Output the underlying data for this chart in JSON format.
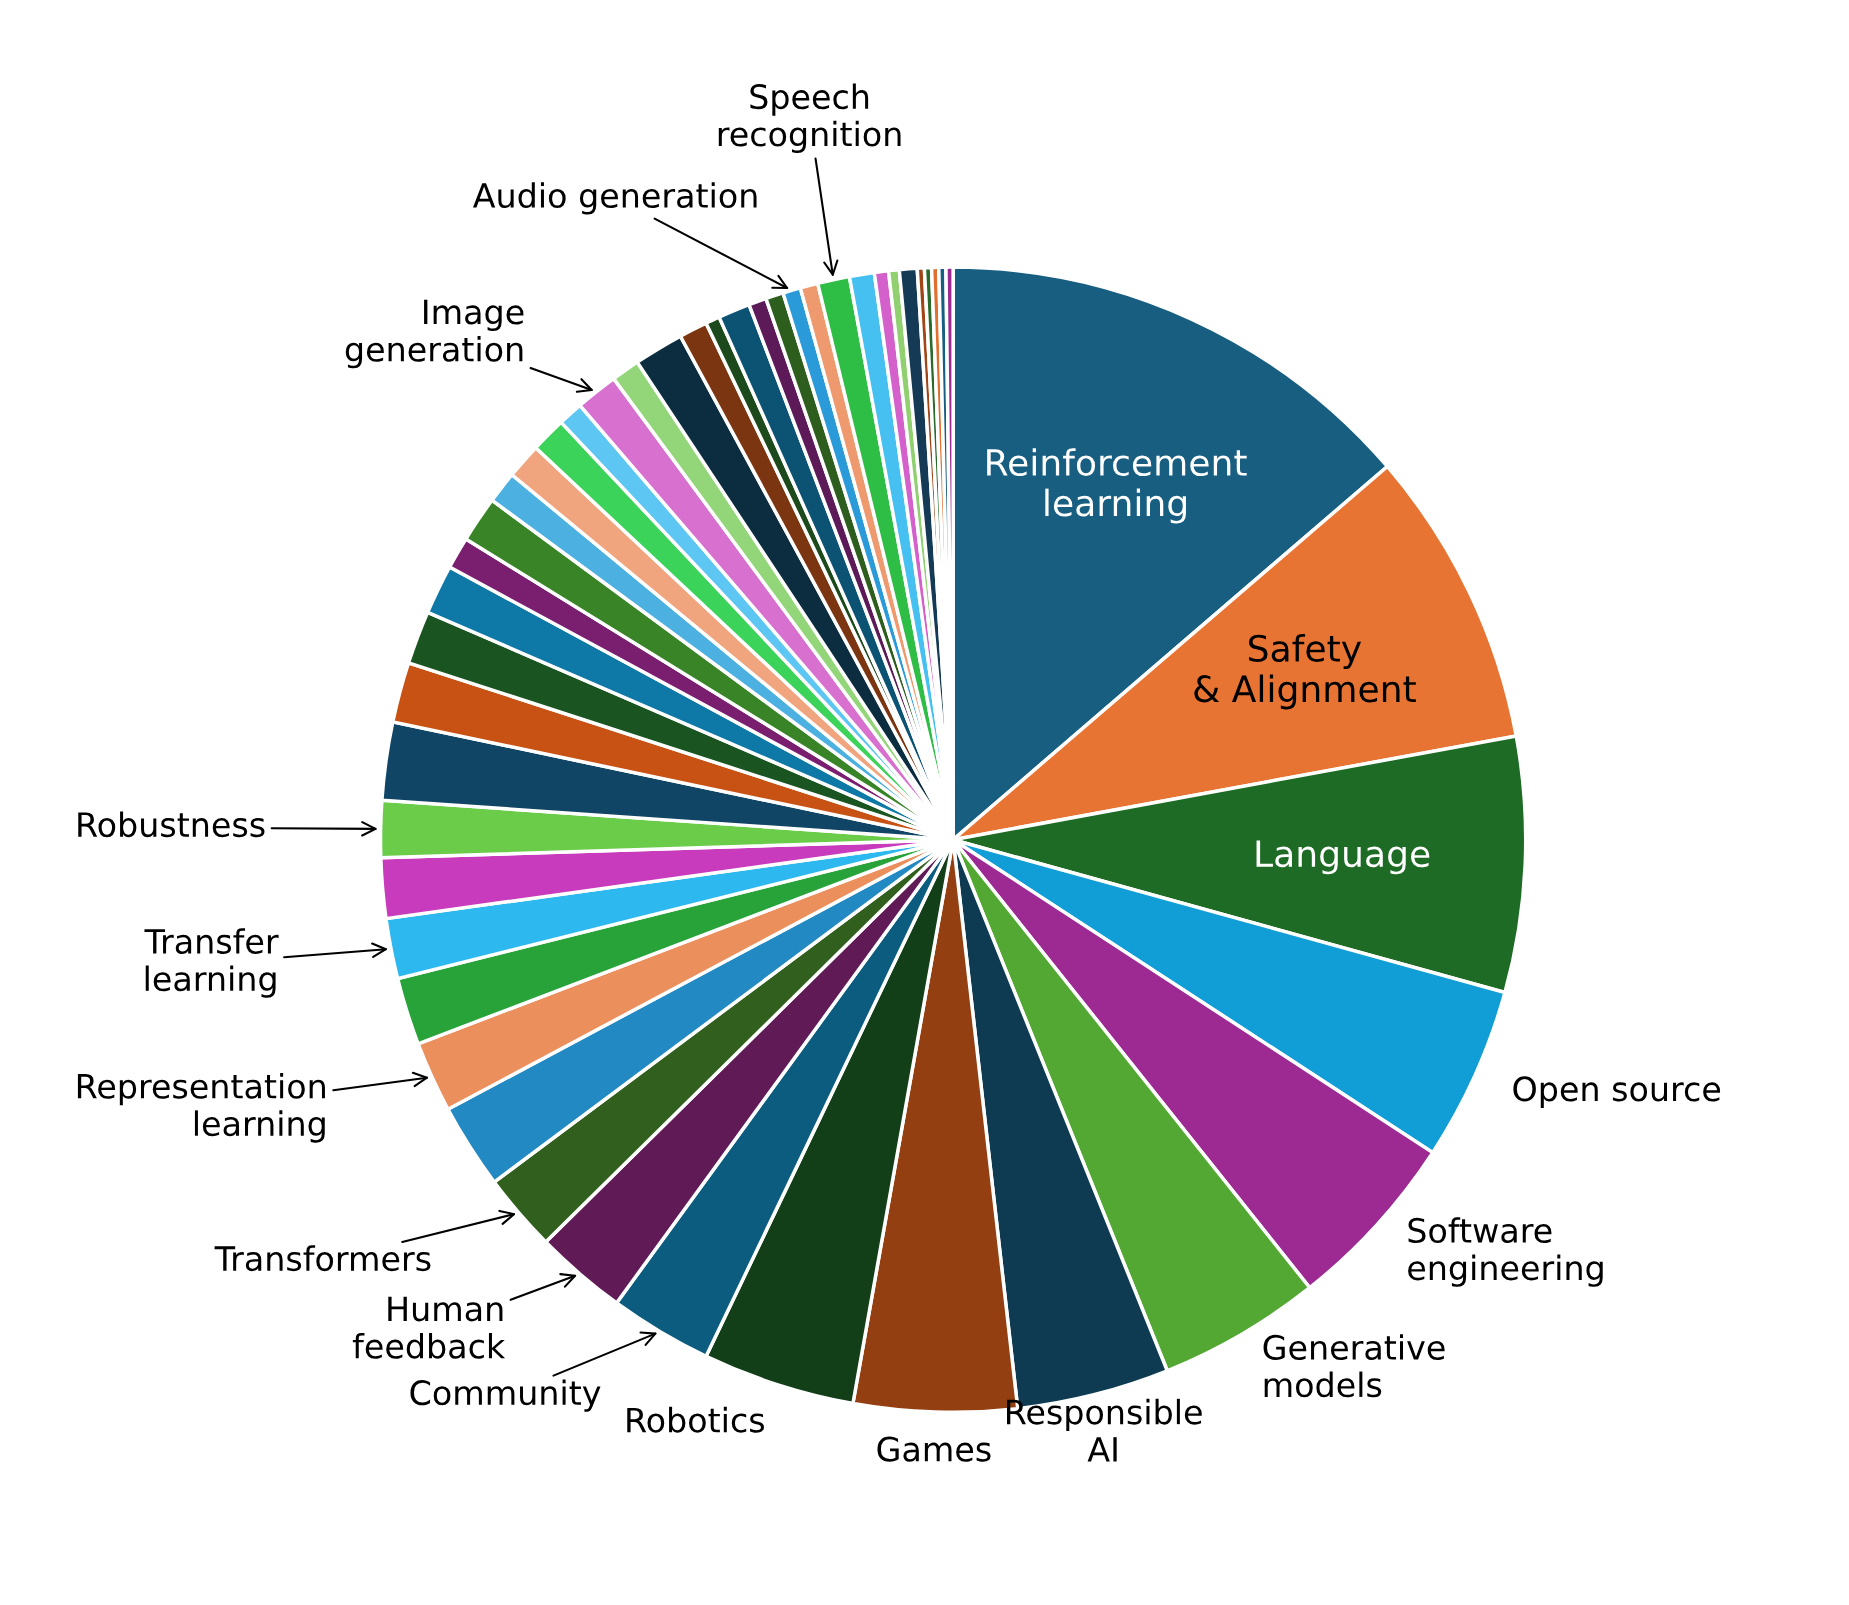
{
  "chart_data": {
    "type": "pie",
    "categories": [
      "Reinforcement learning",
      "Safety & Alignment",
      "Language",
      "Open source",
      "Software engineering",
      "Generative models",
      "Responsible AI",
      "Games",
      "Robotics",
      "Community",
      "Human feedback",
      "Transformers",
      null,
      "Representation learning",
      null,
      "Transfer learning",
      null,
      "Robustness",
      null,
      null,
      null,
      null,
      null,
      null,
      null,
      null,
      null,
      null,
      "Image generation",
      null,
      null,
      null,
      null,
      null,
      null,
      null,
      "Audio generation",
      null,
      "Speech recognition",
      null,
      null,
      null,
      null,
      null,
      null,
      null,
      null,
      null
    ],
    "values": [
      13.7,
      8.4,
      7.2,
      4.9,
      5.1,
      4.6,
      4.3,
      4.6,
      4.3,
      2.9,
      2.6,
      2.2,
      2.4,
      2.0,
      1.9,
      1.7,
      1.7,
      1.6,
      2.2,
      1.7,
      1.5,
      1.4,
      0.9,
      1.3,
      0.9,
      1.0,
      1.0,
      0.7,
      1.2,
      0.8,
      1.4,
      0.8,
      0.4,
      0.9,
      0.5,
      0.5,
      0.5,
      0.5,
      0.9,
      0.7,
      0.4,
      0.3,
      0.5,
      0.2,
      0.2,
      0.2,
      0.2,
      0.2
    ],
    "colors": [
      "#175e80",
      "#e87434",
      "#1d6b25",
      "#119ed6",
      "#9c2a92",
      "#52a832",
      "#0e3a52",
      "#933f12",
      "#123f18",
      "#0b5c7e",
      "#601a56",
      "#31601e",
      "#2389c2",
      "#eb8f5c",
      "#27a33a",
      "#2db8ef",
      "#c93bbd",
      "#6bcc4a",
      "#114566",
      "#c85214",
      "#1a5521",
      "#0e79a6",
      "#7a1f70",
      "#3a8428",
      "#4cb0e0",
      "#f0a57e",
      "#3cd35a",
      "#5ec6f2",
      "#d870cf",
      "#93d67a",
      "#0c2c40",
      "#7b3510",
      "#1c4a1c",
      "#0c5273",
      "#5c1b58",
      "#2d5e1e",
      "#2a9ad8",
      "#ee9a6e",
      "#2ebd45",
      "#46c0f0",
      "#d460cc",
      "#90d070",
      "#143a55",
      "#a04515",
      "#2a6a2a",
      "#e07030",
      "#175e80",
      "#9c2a92"
    ]
  }
}
